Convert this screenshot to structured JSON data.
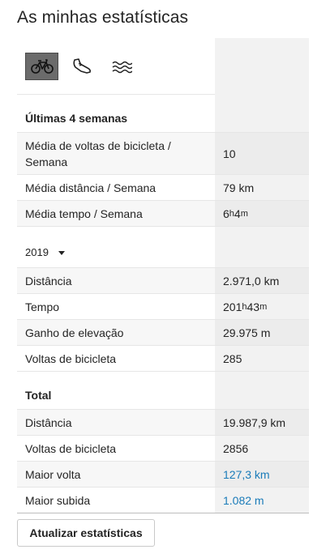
{
  "title": "As minhas estatísticas",
  "sports": [
    {
      "icon": "bicycle-icon",
      "active": true
    },
    {
      "icon": "running-shoe-icon",
      "active": false
    },
    {
      "icon": "swimming-waves-icon",
      "active": false
    }
  ],
  "recent": {
    "heading": "Últimas 4 semanas",
    "rows": [
      {
        "label": "Média de voltas de bicicleta / Semana",
        "value": "10"
      },
      {
        "label": "Média distância / Semana",
        "value": "79 km"
      },
      {
        "label": "Média tempo / Semana",
        "value_h": "6",
        "unit_h": "h",
        "value_m": " 4",
        "unit_m": "m"
      }
    ]
  },
  "year": {
    "selected": "2019",
    "rows": [
      {
        "label": "Distância",
        "value": "2.971,0 km"
      },
      {
        "label": "Tempo",
        "value_h": "201",
        "unit_h": "h",
        "value_m": " 43",
        "unit_m": "m"
      },
      {
        "label": "Ganho de elevação",
        "value": "29.975 m"
      },
      {
        "label": "Voltas de bicicleta",
        "value": "285"
      }
    ]
  },
  "total": {
    "heading": "Total",
    "rows": [
      {
        "label": "Distância",
        "value": "19.987,9 km"
      },
      {
        "label": "Voltas de bicicleta",
        "value": "2856"
      },
      {
        "label": "Maior volta",
        "value": "127,3 km"
      },
      {
        "label": "Maior subida",
        "value": "1.082 m"
      }
    ]
  },
  "colors": {
    "link": "#1a7bb9",
    "active_tab": "#6b6b6b"
  },
  "update_button": "Atualizar estatísticas"
}
